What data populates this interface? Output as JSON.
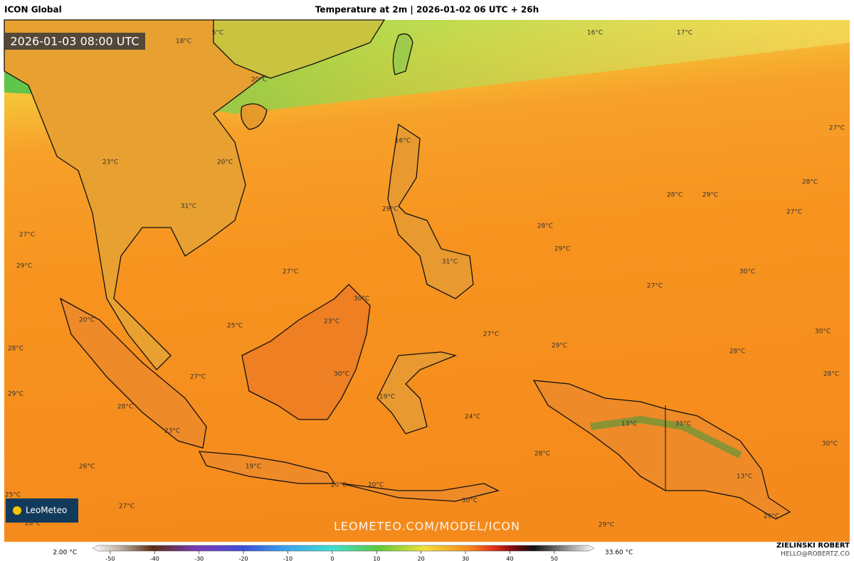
{
  "header": {
    "model": "ICON Global",
    "title": "Temperature at 2m | 2026-01-02 06 UTC + 26h"
  },
  "map": {
    "valid_time": "2026-01-03 08:00 UTC",
    "watermark": "LEOMETEO.COM/MODEL/ICON",
    "logo": "LeoMeteo",
    "labels": [
      "5°C",
      "18°C",
      "16°C",
      "17°C",
      "20°C",
      "16°C",
      "23°C",
      "20°C",
      "27°C",
      "28°C",
      "29°C",
      "28°C",
      "27°C",
      "29°C",
      "31°C",
      "27°C",
      "28°C",
      "29°C",
      "29°C",
      "27°C",
      "31°C",
      "30°C",
      "27°C",
      "30°C",
      "20°C",
      "25°C",
      "23°C",
      "30°C",
      "27°C",
      "29°C",
      "28°C",
      "28°C",
      "30°C",
      "27°C",
      "28°C",
      "29°C",
      "19°C",
      "28°C",
      "24°C",
      "13°C",
      "31°C",
      "23°C",
      "30°C",
      "28°C",
      "26°C",
      "19°C",
      "13°C",
      "20°C",
      "20°C",
      "25°C",
      "30°C",
      "27°C",
      "29°C",
      "28°C",
      "29°C"
    ]
  },
  "colorbar": {
    "min_label": "2.00 °C",
    "max_label": "33.60 °C",
    "lim": [
      -54,
      59
    ],
    "ticks": [
      -50,
      -40,
      -30,
      -20,
      -10,
      0,
      10,
      20,
      30,
      40,
      50
    ]
  },
  "credit": {
    "name": "ZIELIŃSKI ROBERT",
    "email": "HELLO@ROBERTZ.CO"
  }
}
